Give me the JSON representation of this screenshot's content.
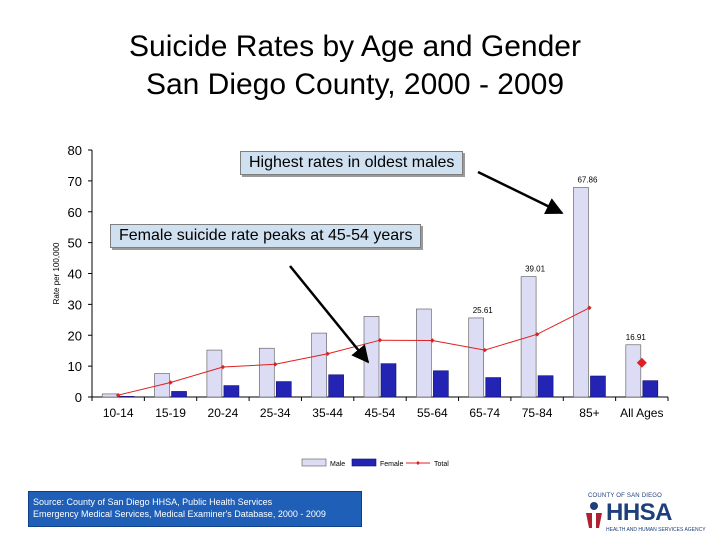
{
  "title_line1": "Suicide Rates by Age and Gender",
  "title_line2": "San Diego County, 2000 - 2009",
  "callouts": {
    "top": "Highest rates in oldest males",
    "middle": "Female suicide rate peaks at 45-54 years"
  },
  "source": {
    "line1": "Source: County of San Diego HHSA, Public Health Services",
    "line2": "Emergency Medical Services, Medical Examiner's Database, 2000 - 2009"
  },
  "logo": {
    "small_text": "COUNTY OF SAN DIEGO",
    "main_text": "HHSA",
    "sub_text": "HEALTH AND HUMAN SERVICES AGENCY"
  },
  "colors": {
    "male": "#dcdcf4",
    "female": "#2323b4",
    "total": "#e02020"
  },
  "chart_data": {
    "type": "bar",
    "title": "Suicide Rates by Age and Gender San Diego County, 2000 - 2009",
    "ylabel": "Rate per 100,000",
    "xlabel": "",
    "ylim": [
      0,
      80
    ],
    "yticks": [
      "0",
      "10",
      "20",
      "30",
      "40",
      "50",
      "60",
      "70",
      "80"
    ],
    "categories": [
      "10-14",
      "15-19",
      "20-24",
      "25-34",
      "35-44",
      "45-54",
      "55-64",
      "65-74",
      "75-84",
      "85+",
      "All Ages"
    ],
    "series": [
      {
        "name": "Male",
        "kind": "bar",
        "values": [
          1.0,
          7.6,
          15.2,
          15.8,
          20.7,
          26.1,
          28.5,
          25.61,
          39.01,
          67.86,
          16.91
        ]
      },
      {
        "name": "Female",
        "kind": "bar",
        "values": [
          0.2,
          1.8,
          3.7,
          5.0,
          7.2,
          10.8,
          8.5,
          6.3,
          6.9,
          6.8,
          5.3
        ]
      },
      {
        "name": "Total",
        "kind": "line",
        "values": [
          0.6,
          4.7,
          9.7,
          10.6,
          14.0,
          18.4,
          18.3,
          15.2,
          20.3,
          28.9,
          11.1
        ]
      }
    ],
    "data_labels": [
      {
        "category": "65-74",
        "text": "25.61"
      },
      {
        "category": "75-84",
        "text": "39.01"
      },
      {
        "category": "85+",
        "text": "67.86"
      },
      {
        "category": "All Ages",
        "text": "16.91"
      }
    ],
    "legend": "bottom-center"
  }
}
